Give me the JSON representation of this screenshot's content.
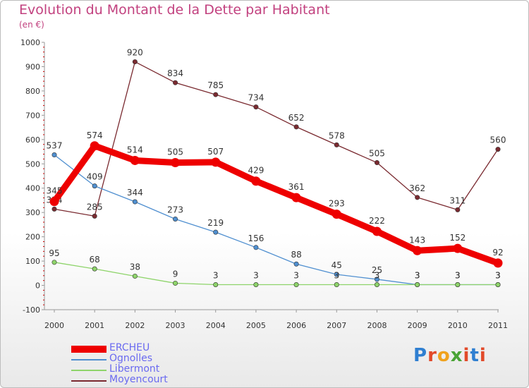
{
  "header": {
    "title": "Evolution du Montant de la Dette par Habitant",
    "subtitle": "(en €)"
  },
  "logo": {
    "text": "Proxiti",
    "colors": [
      "#2f7fd1",
      "#e24a2a",
      "#f0a21e",
      "#4aa336",
      "#e24a2a",
      "#2f7fd1",
      "#e24a2a"
    ]
  },
  "chart_data": {
    "type": "line",
    "title": "Evolution du Montant de la Dette par Habitant",
    "subtitle": "(en €)",
    "xlabel": "",
    "ylabel": "",
    "x": [
      "2000",
      "2001",
      "2002",
      "2003",
      "2004",
      "2005",
      "2006",
      "2007",
      "2008",
      "2009",
      "2010",
      "2011"
    ],
    "ylim": [
      -100,
      1000
    ],
    "yticks": [
      -100,
      0,
      100,
      200,
      300,
      400,
      500,
      600,
      700,
      800,
      900,
      1000
    ],
    "grid": false,
    "legend_position": "bottom-left",
    "series": [
      {
        "name": "Moyencourt",
        "color": "#7a2a30",
        "values": [
          314,
          285,
          920,
          834,
          785,
          734,
          652,
          578,
          505,
          362,
          311,
          560
        ],
        "labels": [
          "314",
          "285",
          "920",
          "834",
          "785",
          "734",
          "652",
          "578",
          "505",
          "362",
          "311",
          "560"
        ]
      },
      {
        "name": "Ognolles",
        "color": "#4f8fd0",
        "values": [
          537,
          409,
          344,
          273,
          219,
          156,
          88,
          45,
          25,
          3,
          3,
          3
        ],
        "labels": [
          "537",
          "409",
          "344",
          "273",
          "219",
          "156",
          "88",
          "45",
          "25",
          "3",
          "3",
          "3"
        ]
      },
      {
        "name": "Libermont",
        "color": "#8ed46a",
        "values": [
          95,
          68,
          38,
          9,
          3,
          3,
          3,
          3,
          3,
          3,
          3,
          3
        ],
        "labels": [
          "95",
          "68",
          "38",
          "9",
          "3",
          "3",
          "3",
          "3",
          "3",
          "3",
          "3",
          "3"
        ]
      },
      {
        "name": "ERCHEU",
        "color": "#ee0000",
        "values": [
          345,
          574,
          514,
          505,
          507,
          429,
          361,
          293,
          222,
          143,
          152,
          92
        ],
        "labels": [
          "345",
          "574",
          "514",
          "505",
          "507",
          "429",
          "361",
          "293",
          "222",
          "143",
          "152",
          "92"
        ]
      }
    ],
    "legend": [
      "ERCHEU",
      "Ognolles",
      "Libermont",
      "Moyencourt"
    ]
  }
}
